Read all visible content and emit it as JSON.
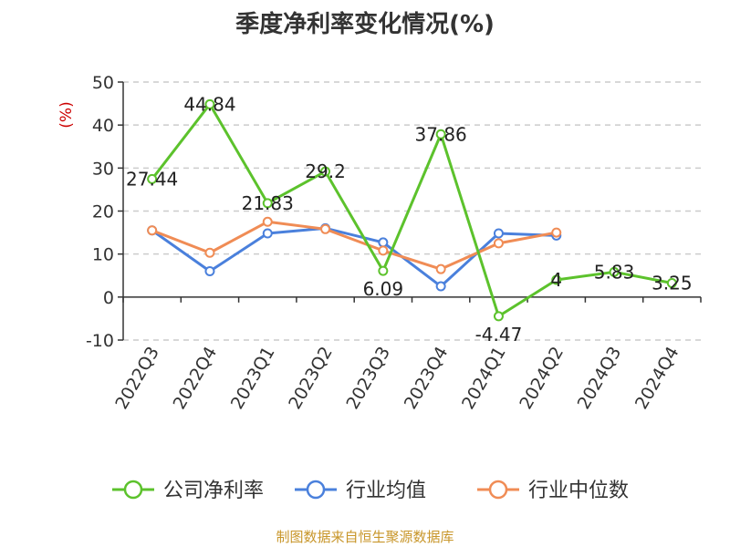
{
  "chart_data": {
    "type": "line",
    "title": "季度净利率变化情况(%)",
    "ylabel": "(%)",
    "ylim": [
      -10,
      50
    ],
    "yticks": [
      -10,
      0,
      10,
      20,
      30,
      40,
      50
    ],
    "grid": true,
    "legend_position": "bottom",
    "categories": [
      "2022Q3",
      "2022Q4",
      "2023Q1",
      "2023Q2",
      "2023Q3",
      "2023Q4",
      "2024Q1",
      "2024Q2",
      "2024Q3",
      "2024Q4"
    ],
    "series": [
      {
        "name": "公司净利率",
        "color": "#5cc22c",
        "values": [
          27.44,
          44.84,
          21.83,
          29.2,
          6.09,
          37.86,
          -4.47,
          4,
          5.83,
          3.25
        ],
        "labels": [
          "27.44",
          "44.84",
          "21.83",
          "29.2",
          "6.09",
          "37.86",
          "-4.47",
          "4",
          "5.83",
          "3.25"
        ]
      },
      {
        "name": "行业均值",
        "color": "#4a80dc",
        "values": [
          15.5,
          6.0,
          14.8,
          16.0,
          12.7,
          2.5,
          14.8,
          14.3,
          null,
          null
        ]
      },
      {
        "name": "行业中位数",
        "color": "#f08c55",
        "values": [
          15.5,
          10.3,
          17.5,
          15.8,
          10.8,
          6.5,
          12.5,
          15.0,
          null,
          null
        ]
      }
    ]
  },
  "source": "制图数据来自恒生聚源数据库"
}
